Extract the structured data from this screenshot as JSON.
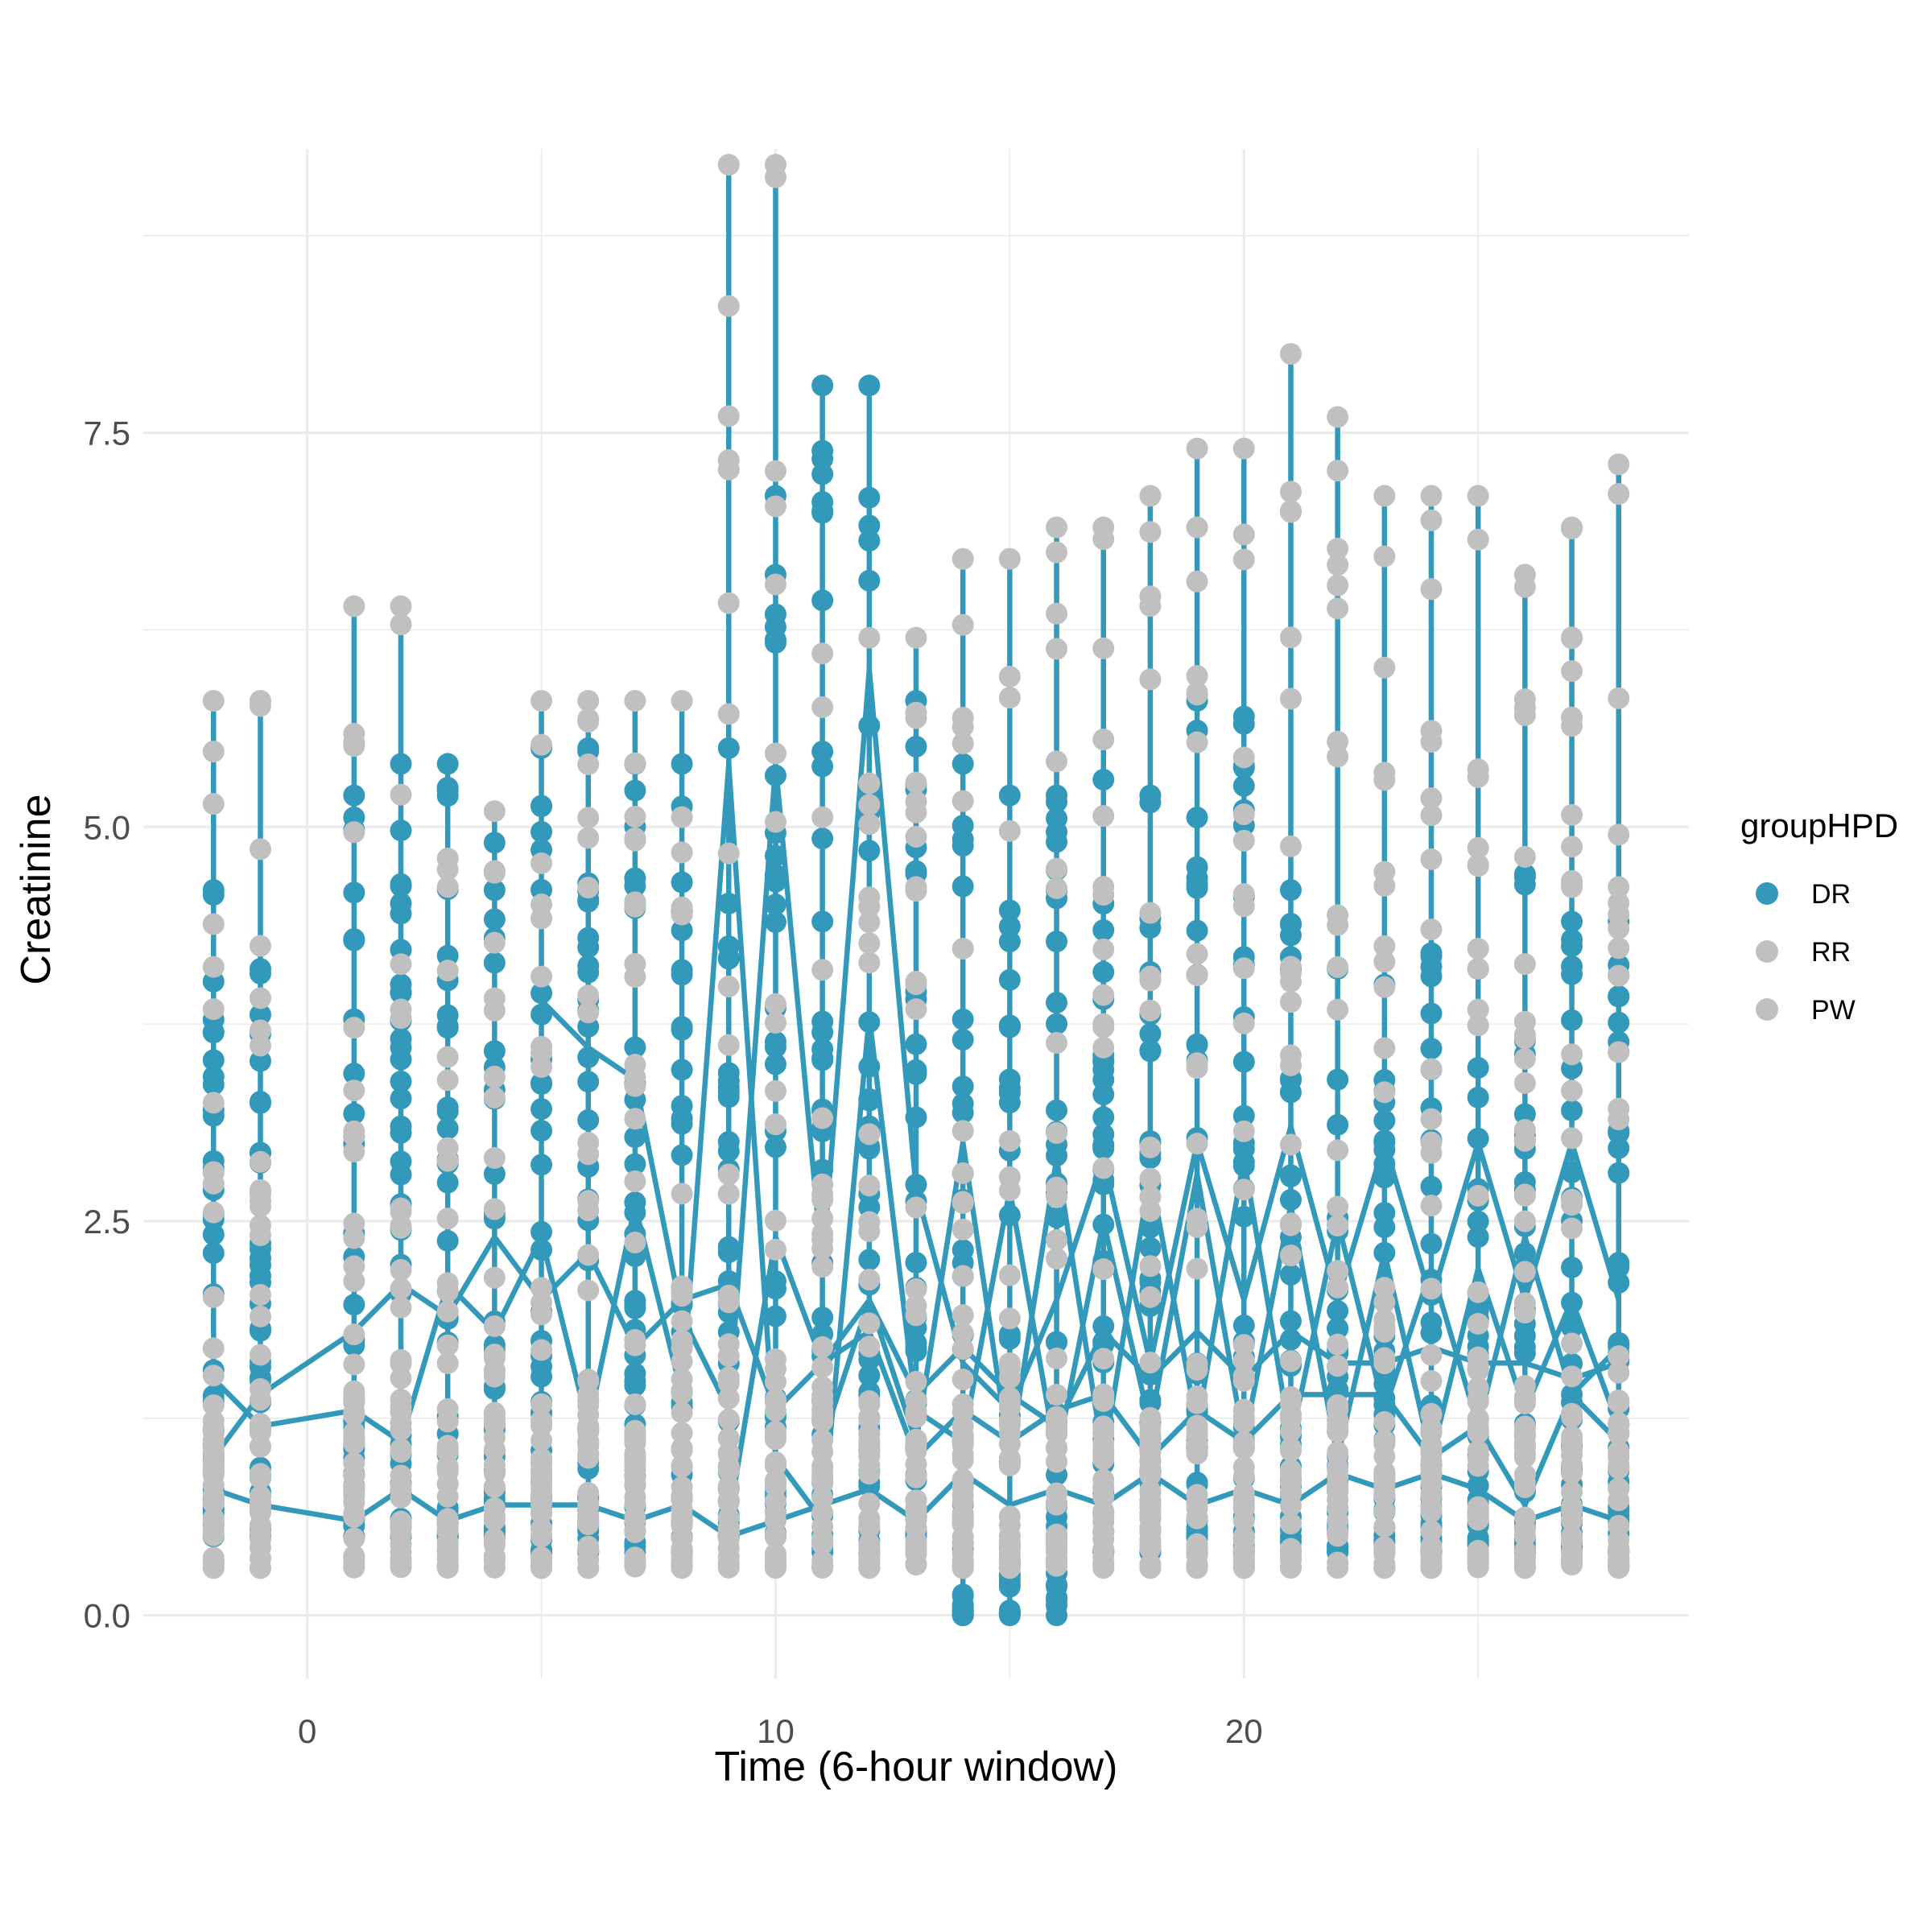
{
  "chart_data": {
    "type": "scatter",
    "title": "",
    "xlabel": "Time (6-hour window)",
    "ylabel": "Creatinine",
    "xlim": [
      -3.5,
      29.5
    ],
    "ylim": [
      -0.4,
      9.3
    ],
    "x_ticks": [
      0,
      10,
      20
    ],
    "x_tick_labels": [
      "0",
      "10",
      "20"
    ],
    "y_ticks": [
      0,
      2.5,
      5,
      7.5
    ],
    "y_tick_labels": [
      "0.0",
      "2.5",
      "5.0",
      "7.5"
    ],
    "grid": true,
    "legend": {
      "title": "groupHPD",
      "position": "right",
      "entries": [
        {
          "name": "DR",
          "color": "#3399BB"
        },
        {
          "name": "RR",
          "color": "#C0C0C0"
        },
        {
          "name": "PW",
          "color": "#C0C0C0"
        }
      ]
    },
    "time_points": [
      -2,
      -1,
      1,
      2,
      3,
      4,
      5,
      6,
      7,
      8,
      9,
      10,
      11,
      12,
      13,
      14,
      15,
      16,
      17,
      18,
      19,
      20,
      21,
      22,
      23,
      24,
      25,
      26,
      27,
      28
    ],
    "dr_range": [
      [
        0.5,
        4.6
      ],
      [
        0.5,
        4.1
      ],
      [
        0.5,
        5.2
      ],
      [
        0.5,
        5.4
      ],
      [
        0.5,
        5.4
      ],
      [
        0.5,
        4.9
      ],
      [
        0.4,
        5.5
      ],
      [
        0.4,
        5.5
      ],
      [
        0.4,
        5.4
      ],
      [
        0.4,
        5.4
      ],
      [
        0.5,
        5.5
      ],
      [
        0.5,
        7.1
      ],
      [
        0.4,
        7.8
      ],
      [
        0.4,
        7.8
      ],
      [
        0.5,
        5.8
      ],
      [
        0.0,
        5.4
      ],
      [
        0.0,
        5.2
      ],
      [
        0.0,
        5.2
      ],
      [
        0.4,
        5.3
      ],
      [
        0.4,
        5.2
      ],
      [
        0.4,
        5.8
      ],
      [
        0.4,
        5.7
      ],
      [
        0.4,
        4.6
      ],
      [
        0.4,
        4.1
      ],
      [
        0.4,
        4.0
      ],
      [
        0.4,
        4.2
      ],
      [
        0.4,
        4.1
      ],
      [
        0.4,
        4.7
      ],
      [
        0.4,
        4.4
      ],
      [
        0.4,
        4.4
      ]
    ],
    "grey_max": [
      5.8,
      5.8,
      6.4,
      6.4,
      4.8,
      5.1,
      5.8,
      5.8,
      5.8,
      5.8,
      9.2,
      9.2,
      6.1,
      6.2,
      6.2,
      6.7,
      6.7,
      6.9,
      6.9,
      7.1,
      7.4,
      7.4,
      8.0,
      7.6,
      7.1,
      7.1,
      7.1,
      6.6,
      6.9,
      7.3
    ],
    "dr_series": [
      {
        "x": [
          -2,
          -1,
          1,
          2,
          3,
          4,
          5,
          6,
          7,
          8,
          9,
          10,
          11,
          12,
          13,
          14,
          15,
          16,
          17,
          18,
          19,
          20,
          21,
          22,
          23,
          24,
          25,
          26,
          27,
          28
        ],
        "y": [
          1.0,
          1.4,
          1.8,
          2.1,
          1.9,
          2.4,
          2.0,
          2.3,
          1.7,
          2.0,
          2.1,
          1.3,
          1.6,
          2.0,
          1.1,
          3.0,
          1.0,
          2.9,
          1.0,
          2.8,
          1.2,
          2.9,
          1.1,
          2.5,
          1.3,
          2.2,
          1.2,
          2.4,
          1.4,
          1.7
        ]
      },
      {
        "x": [
          -2,
          -1,
          1,
          2,
          3,
          4,
          5,
          6,
          7,
          8,
          9,
          10,
          11,
          12,
          13,
          14,
          15,
          16,
          17,
          18,
          19,
          20,
          21,
          22,
          23,
          24,
          25,
          26,
          27,
          28
        ],
        "y": [
          1.5,
          1.2,
          1.3,
          1.1,
          2.1,
          1.8,
          2.4,
          1.2,
          2.6,
          1.4,
          5.4,
          1.0,
          0.6,
          3.8,
          1.3,
          1.1,
          2.7,
          1.0,
          2.5,
          1.2,
          2.8,
          1.1,
          2.6,
          1.0,
          2.3,
          1.0,
          2.2,
          1.3,
          2.0,
          1.2
        ]
      },
      {
        "x": [
          -2,
          -1,
          1,
          2,
          3,
          4,
          5,
          6,
          7,
          8,
          9,
          10,
          11,
          12,
          13,
          14,
          15,
          16,
          17,
          18,
          19,
          20,
          21,
          22,
          23,
          24,
          25,
          26,
          27,
          28
        ],
        "y": [
          0.8,
          0.7,
          0.6,
          0.8,
          0.6,
          0.7,
          0.7,
          0.7,
          0.6,
          0.7,
          0.5,
          0.6,
          0.7,
          0.8,
          0.6,
          0.9,
          0.7,
          0.8,
          0.7,
          0.9,
          0.7,
          0.8,
          0.7,
          0.9,
          0.8,
          0.9,
          0.8,
          0.6,
          0.7,
          0.6
        ]
      },
      {
        "x": [
          5,
          6,
          7,
          8,
          9,
          10,
          11,
          12,
          13,
          14,
          15,
          16,
          17,
          18,
          19,
          20,
          21,
          22,
          23,
          24,
          25,
          26,
          27,
          28
        ],
        "y": [
          3.9,
          3.6,
          3.4,
          1.9,
          1.3,
          5.4,
          2.2,
          6.0,
          2.7,
          1.6,
          1.3,
          2.0,
          2.9,
          1.6,
          3.0,
          2.0,
          3.1,
          2.0,
          3.0,
          2.0,
          3.0,
          2.0,
          3.0,
          2.0
        ]
      },
      {
        "x": [
          9,
          10,
          11,
          12,
          13,
          14,
          15,
          16,
          17,
          18,
          19,
          20,
          21,
          22,
          23,
          24,
          25,
          26,
          27,
          28
        ],
        "y": [
          0.6,
          2.4,
          1.6,
          1.8,
          1.0,
          1.3,
          1.1,
          1.3,
          1.4,
          1.0,
          1.3,
          1.1,
          1.4,
          1.4,
          1.4,
          1.0,
          1.2,
          0.7,
          1.4,
          1.1
        ]
      },
      {
        "x": [
          11,
          12,
          13,
          14,
          15,
          16,
          17,
          18,
          19,
          20,
          21,
          22,
          23,
          24,
          25,
          26,
          27,
          28
        ],
        "y": [
          1.1,
          2.0,
          1.4,
          1.7,
          1.4,
          1.2,
          1.8,
          1.5,
          1.8,
          1.5,
          1.8,
          1.6,
          1.6,
          1.7,
          1.6,
          1.6,
          1.5,
          1.6
        ]
      }
    ]
  }
}
